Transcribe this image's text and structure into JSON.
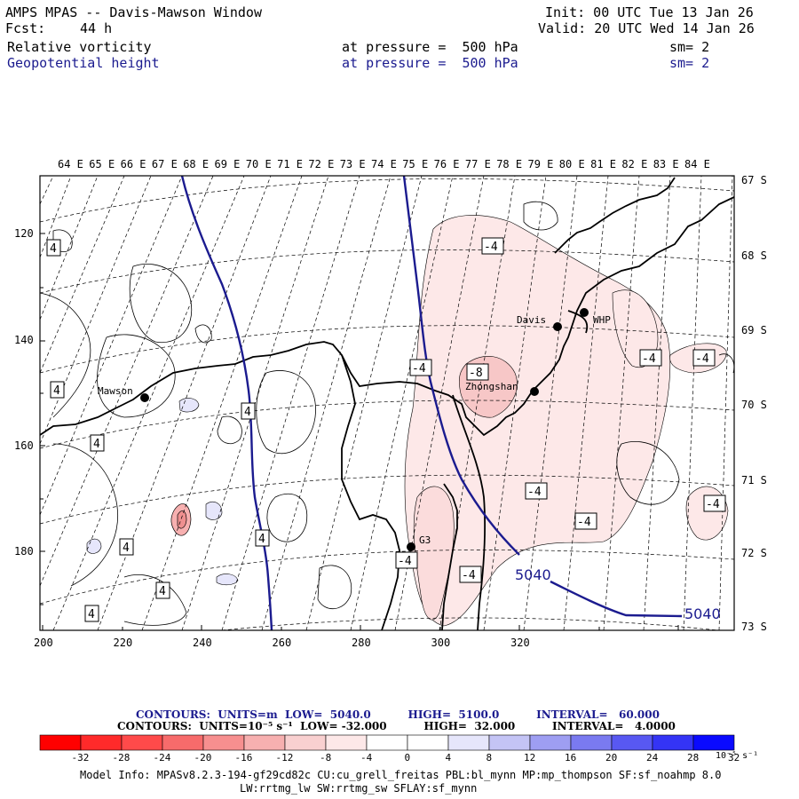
{
  "header": {
    "title": "AMPS MPAS -- Davis-Mawson Window",
    "fcst_label": "Fcst:",
    "fcst_value": "44 h",
    "init": "Init: 00 UTC Tue 13 Jan 26",
    "valid": "Valid: 20 UTC Wed 14 Jan 26",
    "field1_name": "Relative vorticity",
    "field1_level": "at pressure =  500 hPa",
    "field1_sm": "sm= 2",
    "field2_name": "Geopotential height",
    "field2_level": "at pressure =  500 hPa",
    "field2_sm": "sm= 2"
  },
  "map": {
    "lon_labels": [
      "64 E",
      "65 E",
      "66 E",
      "67 E",
      "68 E",
      "69 E",
      "70 E",
      "71 E",
      "72 E",
      "73 E",
      "74 E",
      "75 E",
      "76 E",
      "77 E",
      "78 E",
      "79 E",
      "80 E",
      "81 E",
      "82 E",
      "83 E",
      "84 E"
    ],
    "lat_labels": [
      "67 S",
      "68 S",
      "69 S",
      "70 S",
      "71 S",
      "72 S",
      "73 S"
    ],
    "x_ticks": [
      "200",
      "220",
      "240",
      "260",
      "280",
      "300",
      "320"
    ],
    "y_ticks": [
      "120",
      "140",
      "160",
      "180"
    ],
    "stations": [
      {
        "name": "Mawson"
      },
      {
        "name": "Davis"
      },
      {
        "name": "WHP"
      },
      {
        "name": "Zhongshan"
      },
      {
        "name": "G3"
      }
    ],
    "contour_labels": {
      "height": "5040",
      "pos4": "4",
      "neg4": "-4",
      "neg8": "-8"
    },
    "colors": {
      "height_contour": "#1b1b8f",
      "coast": "#000000",
      "neg_shade_light": "#fde8e8",
      "neg_shade_mid": "#f7c7c7",
      "neg_shade_dark": "#ef9090",
      "pos_shade_light": "#e6e6fb"
    }
  },
  "legend": {
    "contours1": "CONTOURS:  UNITS=m  LOW=  5040.0          HIGH=  5100.0          INTERVAL=   60.000",
    "contours2": "CONTOURS:  UNITS=10⁻⁵ s⁻¹  LOW= -32.000          HIGH=  32.000          INTERVAL=   4.0000",
    "ticks": [
      "-32",
      "-28",
      "-24",
      "-20",
      "-16",
      "-12",
      "-8",
      "-4",
      "0",
      "4",
      "8",
      "12",
      "16",
      "20",
      "24",
      "28",
      "32"
    ],
    "unit": "10⁻⁵ s⁻¹",
    "swatches": [
      "#ff0000",
      "#ff2a2a",
      "#ff4a4a",
      "#f76b6b",
      "#f78f8f",
      "#f7b0b0",
      "#f9d0d0",
      "#fde8e8",
      "#ffffff",
      "#ffffff",
      "#e6e6fb",
      "#c4c4f5",
      "#9e9ef2",
      "#7a7af0",
      "#5858f2",
      "#3434f5",
      "#0a0aff"
    ]
  },
  "model_info": {
    "line1": "Model Info: MPASv8.2.3-194-gf29cd82c CU:cu_grell_freitas PBL:bl_mynn MP:mp_thompson SF:sf_noahmp 8.0",
    "line2": "LW:rrtmg_lw SW:rrtmg_sw SFLAY:sf_mynn"
  }
}
